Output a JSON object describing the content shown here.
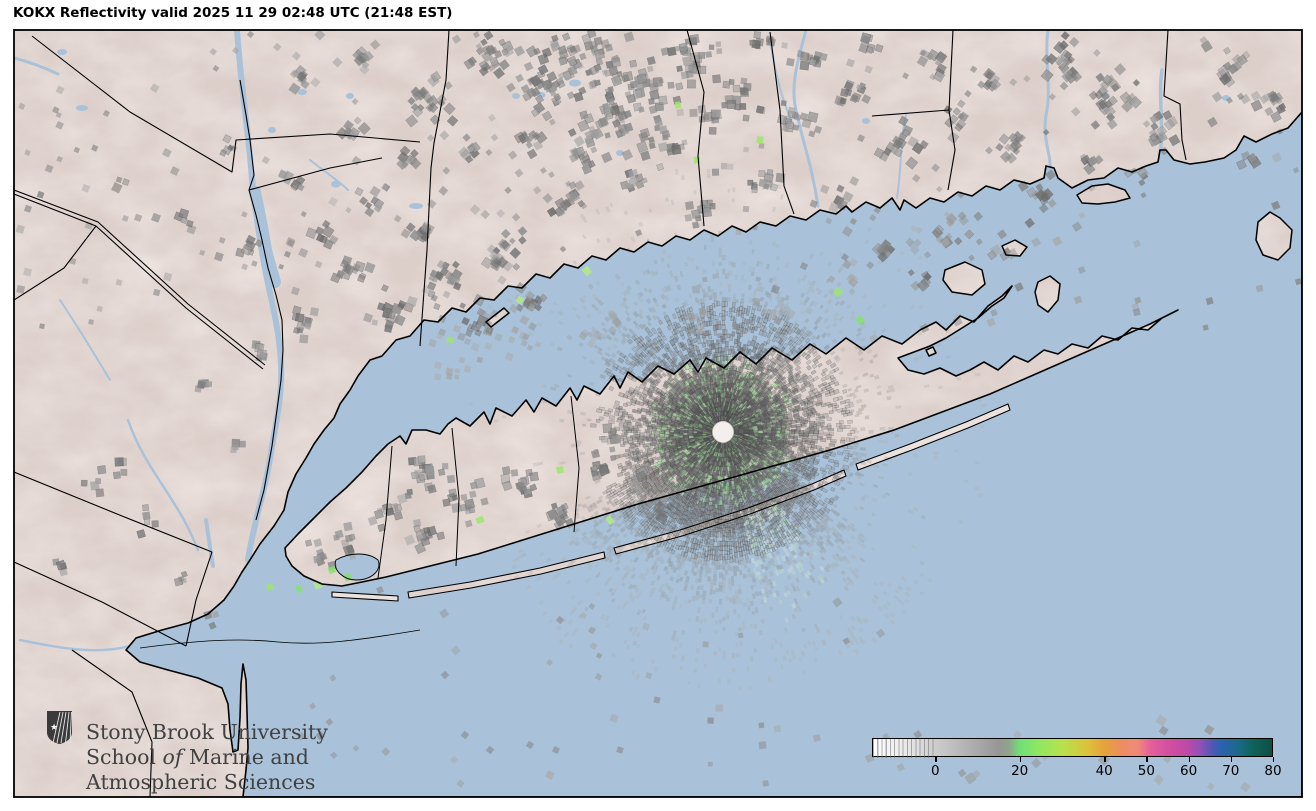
{
  "title": "KOKX Reflectivity valid 2025 11 29 02:48 UTC (21:48 EST)",
  "logo": {
    "line1": "Stony Brook University",
    "line2_pre": "School ",
    "line2_italic": "of",
    "line2_post": " Marine and",
    "line3": "Atmospheric Sciences"
  },
  "colorbar": {
    "vmin": -15,
    "vmax": 80,
    "ticks": [
      "0",
      "20",
      "40",
      "50",
      "60",
      "70",
      "80"
    ],
    "tick_values": [
      0,
      20,
      40,
      50,
      60,
      70,
      80
    ],
    "stops": [
      {
        "v": -15,
        "c": "#ffffff"
      },
      {
        "v": -8,
        "c": "#ececec"
      },
      {
        "v": 0,
        "c": "#cccccc"
      },
      {
        "v": 8,
        "c": "#b0b0b0"
      },
      {
        "v": 15,
        "c": "#969696"
      },
      {
        "v": 17.5,
        "c": "#8fa68c"
      },
      {
        "v": 20,
        "c": "#70e077"
      },
      {
        "v": 24,
        "c": "#8ce763"
      },
      {
        "v": 30,
        "c": "#b5e24c"
      },
      {
        "v": 36,
        "c": "#dcc23c"
      },
      {
        "v": 40,
        "c": "#e5a33a"
      },
      {
        "v": 44,
        "c": "#ec8e5e"
      },
      {
        "v": 48,
        "c": "#ef8a77"
      },
      {
        "v": 51,
        "c": "#e4609c"
      },
      {
        "v": 56,
        "c": "#d14da0"
      },
      {
        "v": 60,
        "c": "#bb4aa8"
      },
      {
        "v": 63,
        "c": "#8f51b8"
      },
      {
        "v": 66,
        "c": "#4a5ab2"
      },
      {
        "v": 68,
        "c": "#2a62ae"
      },
      {
        "v": 72,
        "c": "#1b6a88"
      },
      {
        "v": 75,
        "c": "#11645c"
      },
      {
        "v": 80,
        "c": "#0c4f44"
      }
    ]
  },
  "map": {
    "water_color": "#a9c2d9",
    "land_color": "#ebe1dd",
    "coast_color": "#000000",
    "radar_hole_color": "#f3efec"
  }
}
